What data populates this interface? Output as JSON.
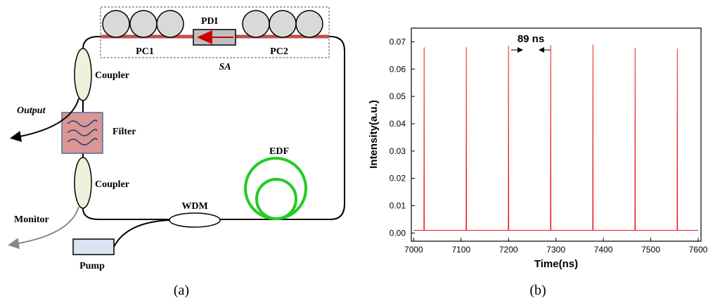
{
  "diagram": {
    "labels": {
      "pdi": "PDI",
      "pc1": "PC1",
      "pc2": "PC2",
      "sa": "SA",
      "coupler_top": "Coupler",
      "output": "Output",
      "filter": "Filter",
      "coupler_bottom": "Coupler",
      "edf": "EDF",
      "wdm": "WDM",
      "monitor": "Monitor",
      "pump": "Pump"
    }
  },
  "captions": [
    "(a)",
    "(b)"
  ],
  "chart_data": {
    "type": "line",
    "x_label": "Time(ns)",
    "y_label": "Intensity(a.u.)",
    "annotation": "89 ns",
    "color": "#e8202a",
    "x": [
      7000,
      7021.5,
      7022,
      7022.5,
      7110.5,
      7111,
      7111.5,
      7199.5,
      7200,
      7200.5,
      7288.5,
      7289,
      7289.5,
      7377.5,
      7378,
      7378.5,
      7466.5,
      7467,
      7467.5,
      7555.5,
      7556,
      7556.5,
      7600
    ],
    "values": [
      0.001,
      0.001,
      0.068,
      0.001,
      0.001,
      0.068,
      0.001,
      0.001,
      0.0685,
      0.001,
      0.001,
      0.0688,
      0.001,
      0.001,
      0.069,
      0.001,
      0.001,
      0.0678,
      0.001,
      0.001,
      0.0675,
      0.001,
      0.001
    ],
    "xlim": [
      6995,
      7606
    ],
    "ylim": [
      -0.003,
      0.075
    ],
    "xticks": [
      7000,
      7100,
      7200,
      7300,
      7400,
      7500,
      7600
    ],
    "yticks": [
      {
        "value": 0,
        "label": "0.00"
      },
      {
        "value": 0.01,
        "label": "0.01"
      },
      {
        "value": 0.02,
        "label": "0.02"
      },
      {
        "value": 0.03,
        "label": "0.03"
      },
      {
        "value": 0.04,
        "label": "0.04"
      },
      {
        "value": 0.05,
        "label": "0.05"
      },
      {
        "value": 0.06,
        "label": "0.06"
      },
      {
        "value": 0.07,
        "label": "0.07"
      }
    ]
  }
}
